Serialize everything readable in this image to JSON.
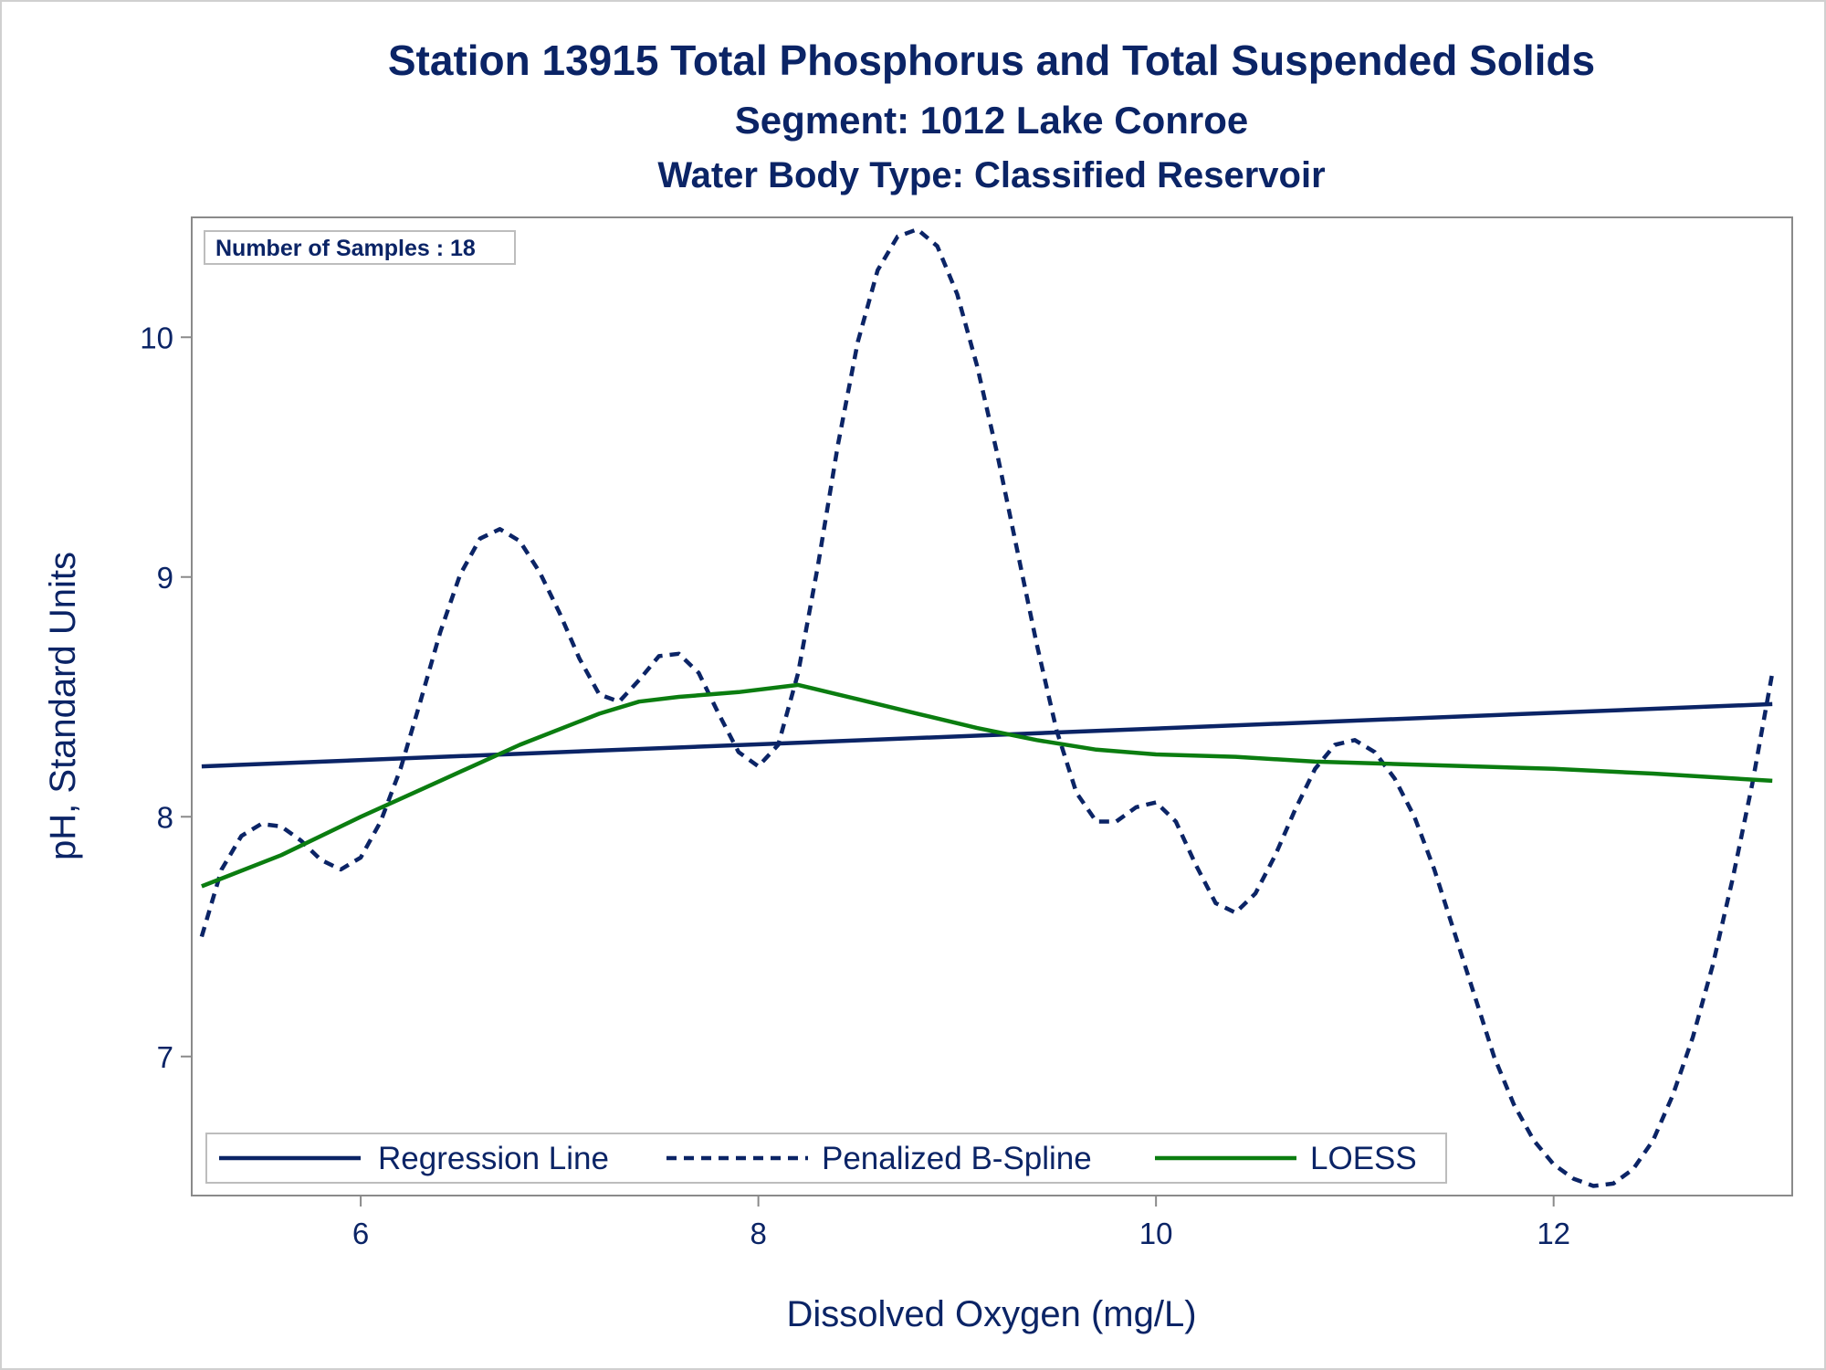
{
  "chart_data": {
    "type": "line",
    "title": "Station 13915  Total Phosphorus and Total Suspended Solids",
    "subtitle": "Segment: 1012  Lake Conroe",
    "subtitle2": "Water Body Type: Classified Reservoir",
    "xlabel": "Dissolved Oxygen (mg/L)",
    "ylabel": "pH, Standard Units",
    "xlim": [
      5.15,
      13.2
    ],
    "ylim": [
      6.42,
      10.5
    ],
    "xticks": [
      6,
      8,
      10,
      12
    ],
    "yticks": [
      7,
      8,
      9,
      10
    ],
    "inset_label": "Number of Samples : 18",
    "legend_position": "bottom-inside",
    "grid": false,
    "series": [
      {
        "name": "Regression Line",
        "style": "solid",
        "color": "#0b2466",
        "points": [
          [
            5.2,
            8.21
          ],
          [
            13.1,
            8.47
          ]
        ]
      },
      {
        "name": "Penalized B-Spline",
        "style": "dashed",
        "color": "#0b2466",
        "points": [
          [
            5.2,
            7.5
          ],
          [
            5.3,
            7.78
          ],
          [
            5.4,
            7.92
          ],
          [
            5.5,
            7.97
          ],
          [
            5.6,
            7.96
          ],
          [
            5.7,
            7.9
          ],
          [
            5.8,
            7.82
          ],
          [
            5.9,
            7.78
          ],
          [
            6.0,
            7.83
          ],
          [
            6.1,
            7.98
          ],
          [
            6.2,
            8.2
          ],
          [
            6.3,
            8.48
          ],
          [
            6.4,
            8.77
          ],
          [
            6.5,
            9.01
          ],
          [
            6.6,
            9.16
          ],
          [
            6.7,
            9.2
          ],
          [
            6.8,
            9.15
          ],
          [
            6.9,
            9.02
          ],
          [
            7.0,
            8.85
          ],
          [
            7.1,
            8.66
          ],
          [
            7.2,
            8.51
          ],
          [
            7.3,
            8.48
          ],
          [
            7.4,
            8.57
          ],
          [
            7.5,
            8.67
          ],
          [
            7.6,
            8.68
          ],
          [
            7.7,
            8.6
          ],
          [
            7.8,
            8.43
          ],
          [
            7.9,
            8.27
          ],
          [
            8.0,
            8.21
          ],
          [
            8.1,
            8.3
          ],
          [
            8.2,
            8.6
          ],
          [
            8.3,
            9.05
          ],
          [
            8.4,
            9.55
          ],
          [
            8.5,
            9.98
          ],
          [
            8.6,
            10.28
          ],
          [
            8.7,
            10.42
          ],
          [
            8.8,
            10.45
          ],
          [
            8.9,
            10.38
          ],
          [
            9.0,
            10.18
          ],
          [
            9.1,
            9.88
          ],
          [
            9.2,
            9.52
          ],
          [
            9.3,
            9.12
          ],
          [
            9.4,
            8.72
          ],
          [
            9.5,
            8.36
          ],
          [
            9.6,
            8.1
          ],
          [
            9.7,
            7.98
          ],
          [
            9.8,
            7.98
          ],
          [
            9.9,
            8.04
          ],
          [
            10.0,
            8.06
          ],
          [
            10.1,
            7.98
          ],
          [
            10.2,
            7.8
          ],
          [
            10.3,
            7.64
          ],
          [
            10.4,
            7.6
          ],
          [
            10.5,
            7.68
          ],
          [
            10.6,
            7.84
          ],
          [
            10.7,
            8.03
          ],
          [
            10.8,
            8.2
          ],
          [
            10.9,
            8.3
          ],
          [
            11.0,
            8.32
          ],
          [
            11.1,
            8.27
          ],
          [
            11.2,
            8.16
          ],
          [
            11.3,
            8.0
          ],
          [
            11.4,
            7.78
          ],
          [
            11.5,
            7.52
          ],
          [
            11.6,
            7.26
          ],
          [
            11.7,
            7.0
          ],
          [
            11.8,
            6.8
          ],
          [
            11.9,
            6.65
          ],
          [
            12.0,
            6.55
          ],
          [
            12.1,
            6.49
          ],
          [
            12.2,
            6.46
          ],
          [
            12.3,
            6.47
          ],
          [
            12.4,
            6.53
          ],
          [
            12.5,
            6.65
          ],
          [
            12.6,
            6.84
          ],
          [
            12.7,
            7.08
          ],
          [
            12.8,
            7.38
          ],
          [
            12.9,
            7.74
          ],
          [
            13.0,
            8.14
          ],
          [
            13.1,
            8.6
          ]
        ]
      },
      {
        "name": "LOESS",
        "style": "solid",
        "color": "#0b7d10",
        "points": [
          [
            5.2,
            7.71
          ],
          [
            5.6,
            7.84
          ],
          [
            6.0,
            8.0
          ],
          [
            6.4,
            8.15
          ],
          [
            6.8,
            8.3
          ],
          [
            7.2,
            8.43
          ],
          [
            7.4,
            8.48
          ],
          [
            7.6,
            8.5
          ],
          [
            7.9,
            8.52
          ],
          [
            8.2,
            8.55
          ],
          [
            8.5,
            8.49
          ],
          [
            8.8,
            8.43
          ],
          [
            9.1,
            8.37
          ],
          [
            9.4,
            8.32
          ],
          [
            9.7,
            8.28
          ],
          [
            10.0,
            8.26
          ],
          [
            10.4,
            8.25
          ],
          [
            10.8,
            8.23
          ],
          [
            11.2,
            8.22
          ],
          [
            11.6,
            8.21
          ],
          [
            12.0,
            8.2
          ],
          [
            12.5,
            8.18
          ],
          [
            13.1,
            8.15
          ]
        ]
      }
    ]
  }
}
